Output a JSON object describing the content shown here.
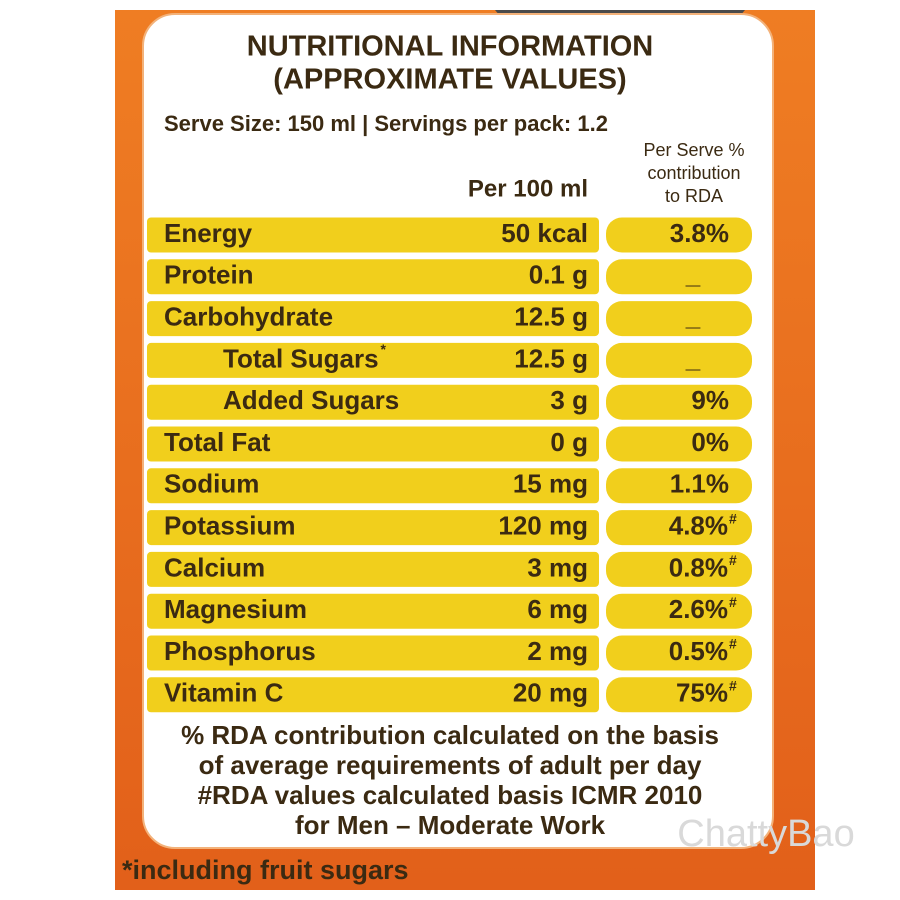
{
  "header": {
    "title": "NUTRITIONAL INFORMATION",
    "subtitle": "(APPROXIMATE VALUES)",
    "serving": "Serve Size: 150 ml | Servings per pack: 1.2"
  },
  "table": {
    "column_per_100ml": "Per 100 ml",
    "column_rda": [
      "Per Serve %",
      "contribution",
      "to RDA"
    ],
    "rows": [
      {
        "nutrient": "Energy",
        "per_100ml": "50 kcal",
        "rda": "3.8%"
      },
      {
        "nutrient": "Protein",
        "per_100ml": "0.1 g",
        "rda": "_"
      },
      {
        "nutrient": "Carbohydrate",
        "per_100ml": "12.5 g",
        "rda": "_",
        "sub_rows": [
          {
            "nutrient": "Total Sugars",
            "nutrient_mark": "*",
            "per_100ml": "12.5 g",
            "rda": "_"
          },
          {
            "nutrient": "Added Sugars",
            "per_100ml": "3 g",
            "rda": "9%"
          }
        ]
      },
      {
        "nutrient": "Total Fat",
        "per_100ml": "0 g",
        "rda": "0%"
      },
      {
        "nutrient": "Sodium",
        "per_100ml": "15 mg",
        "rda": "1.1%"
      },
      {
        "nutrient": "Potassium",
        "per_100ml": "120 mg",
        "rda": "4.8%",
        "rda_mark": "#"
      },
      {
        "nutrient": "Calcium",
        "per_100ml": "3 mg",
        "rda": "0.8%",
        "rda_mark": "#"
      },
      {
        "nutrient": "Magnesium",
        "per_100ml": "6 mg",
        "rda": "2.6%",
        "rda_mark": "#"
      },
      {
        "nutrient": "Phosphorus",
        "per_100ml": "2 mg",
        "rda": "0.5%",
        "rda_mark": "#"
      },
      {
        "nutrient": "Vitamin C",
        "per_100ml": "20 mg",
        "rda": "75%",
        "rda_mark": "#"
      }
    ]
  },
  "footnotes": [
    "% RDA contribution calculated on the basis",
    "of average requirements of adult per day",
    "#RDA values calculated basis ICMR 2010",
    "for Men – Moderate  Work"
  ],
  "bottom_note": "*including fruit sugars",
  "watermark": "ChattyBao"
}
